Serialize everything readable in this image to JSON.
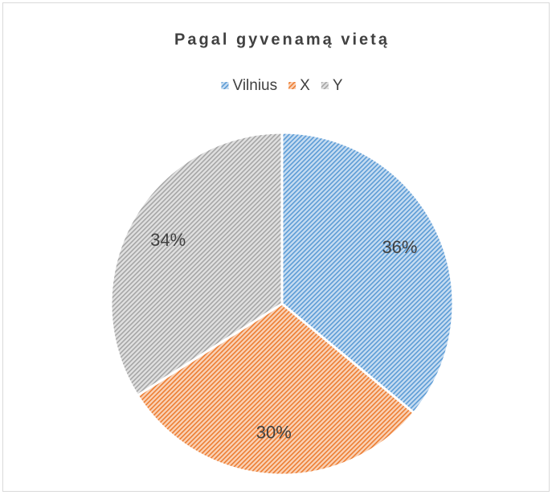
{
  "chart_data": {
    "type": "pie",
    "title": "Pagal gyvenamą vietą",
    "categories": [
      "Vilnius",
      "X",
      "Y"
    ],
    "values": [
      36,
      30,
      34
    ],
    "value_labels": [
      "36%",
      "30%",
      "34%"
    ],
    "colors": [
      "#5b9bd5",
      "#ed7d31",
      "#a5a5a5"
    ],
    "legend": "top"
  }
}
